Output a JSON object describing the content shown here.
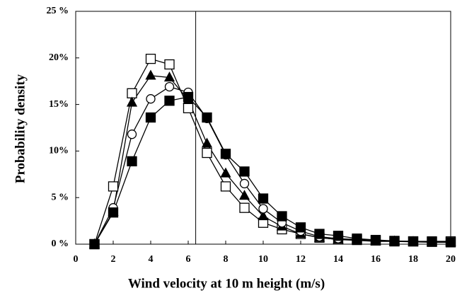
{
  "chart_data": {
    "type": "line",
    "xlabel": "Wind velocity at 10 m height (m/s)",
    "ylabel": "Probability density",
    "x": [
      1,
      2,
      3,
      4,
      5,
      6,
      7,
      8,
      9,
      10,
      11,
      12,
      13,
      14,
      15,
      16,
      17,
      18,
      19,
      20
    ],
    "series": [
      {
        "color": "#000000",
        "marker": "square",
        "filled": false,
        "values": [
          0,
          6.2,
          16.2,
          19.9,
          19.3,
          14.6,
          9.8,
          6.2,
          3.9,
          2.3,
          1.6,
          1.1,
          0.7,
          0.5,
          0.45,
          0.4,
          0.3,
          0.3,
          0.3,
          0.3
        ]
      },
      {
        "color": "#000000",
        "marker": "triangle",
        "filled": true,
        "values": [
          0,
          3.5,
          15.2,
          18.1,
          17.9,
          15.5,
          10.8,
          7.6,
          5.2,
          3.0,
          1.9,
          1.1,
          0.7,
          0.5,
          0.4,
          0.3,
          0.3,
          0.25,
          0.2,
          0.2
        ]
      },
      {
        "color": "#000000",
        "marker": "circle",
        "filled": false,
        "values": [
          0,
          3.9,
          11.8,
          15.6,
          16.9,
          16.3,
          13.5,
          9.6,
          6.5,
          3.8,
          2.3,
          1.4,
          0.8,
          0.6,
          0.5,
          0.4,
          0.3,
          0.3,
          0.25,
          0.2
        ]
      },
      {
        "color": "#000000",
        "marker": "square",
        "filled": true,
        "values": [
          0,
          3.4,
          8.9,
          13.6,
          15.4,
          15.8,
          13.6,
          9.7,
          7.8,
          4.9,
          3.0,
          1.8,
          1.1,
          0.9,
          0.6,
          0.45,
          0.35,
          0.3,
          0.25,
          0.2
        ]
      }
    ],
    "reference_x": 6.4,
    "xlim": [
      0,
      20
    ],
    "xticks": [
      0,
      2,
      4,
      6,
      8,
      10,
      12,
      14,
      16,
      18,
      20
    ],
    "ylim": [
      0,
      25
    ],
    "yticks": [
      {
        "value": 0,
        "label": "0 %"
      },
      {
        "value": 5,
        "label": "5 %"
      },
      {
        "value": 10,
        "label": "10%"
      },
      {
        "value": 15,
        "label": "15%"
      },
      {
        "value": 20,
        "label": "20%"
      },
      {
        "value": 25,
        "label": "25 %"
      }
    ]
  }
}
